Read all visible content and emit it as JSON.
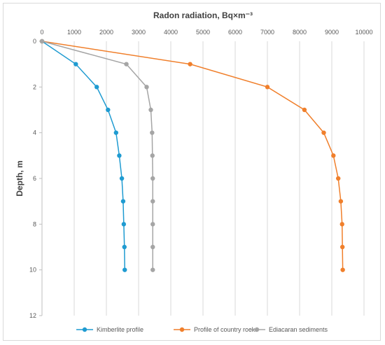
{
  "chart_data": {
    "type": "line",
    "title": "",
    "xlabel": "Radon radiation, Bq×m⁻³",
    "ylabel": "Depth, m",
    "x_axis_position": "top",
    "y_axis_inverted": true,
    "xlim": [
      0,
      10000
    ],
    "ylim": [
      0,
      12
    ],
    "x_ticks": [
      0,
      1000,
      2000,
      3000,
      4000,
      5000,
      6000,
      7000,
      8000,
      9000,
      10000
    ],
    "y_ticks": [
      0,
      2,
      4,
      6,
      8,
      10,
      12
    ],
    "grid": "vertical gridlines",
    "legend_position": "bottom",
    "series": [
      {
        "name": "Kimberlite profile",
        "color": "#1f9bd1",
        "points": [
          [
            0,
            0
          ],
          [
            1050,
            1
          ],
          [
            1700,
            2
          ],
          [
            2050,
            3
          ],
          [
            2300,
            4
          ],
          [
            2400,
            5
          ],
          [
            2480,
            6
          ],
          [
            2520,
            7
          ],
          [
            2540,
            8
          ],
          [
            2560,
            9
          ],
          [
            2570,
            10
          ]
        ]
      },
      {
        "name": "Profile of country rocks",
        "color": "#f07f2b",
        "points": [
          [
            0,
            0
          ],
          [
            4600,
            1
          ],
          [
            7000,
            2
          ],
          [
            8150,
            3
          ],
          [
            8750,
            4
          ],
          [
            9050,
            5
          ],
          [
            9200,
            6
          ],
          [
            9280,
            7
          ],
          [
            9320,
            8
          ],
          [
            9330,
            9
          ],
          [
            9340,
            10
          ]
        ]
      },
      {
        "name": "Ediacaran sediments",
        "color": "#a5a5a5",
        "points": [
          [
            0,
            0
          ],
          [
            2620,
            1
          ],
          [
            3250,
            2
          ],
          [
            3380,
            3
          ],
          [
            3420,
            4
          ],
          [
            3430,
            5
          ],
          [
            3440,
            6
          ],
          [
            3440,
            7
          ],
          [
            3440,
            8
          ],
          [
            3440,
            9
          ],
          [
            3440,
            10
          ]
        ]
      }
    ]
  }
}
